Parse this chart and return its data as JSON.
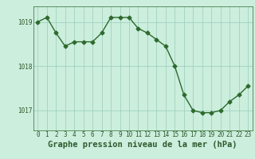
{
  "x": [
    0,
    1,
    2,
    3,
    4,
    5,
    6,
    7,
    8,
    9,
    10,
    11,
    12,
    13,
    14,
    15,
    16,
    17,
    18,
    19,
    20,
    21,
    22,
    23
  ],
  "y": [
    1019.0,
    1019.1,
    1018.75,
    1018.45,
    1018.55,
    1018.55,
    1018.55,
    1018.75,
    1019.1,
    1019.1,
    1019.1,
    1018.85,
    1018.75,
    1018.6,
    1018.45,
    1018.0,
    1017.35,
    1017.0,
    1016.95,
    1016.95,
    1017.0,
    1017.2,
    1017.35,
    1017.55
  ],
  "line_color": "#2d6a2d",
  "marker": "D",
  "markersize": 2.5,
  "linewidth": 1.0,
  "bg_color": "#cceedd",
  "grid_color": "#99ccbb",
  "xlabel": "Graphe pression niveau de la mer (hPa)",
  "xlabel_fontsize": 7.5,
  "xlabel_color": "#2d5a2d",
  "yticks": [
    1017,
    1018,
    1019
  ],
  "ylim": [
    1016.55,
    1019.35
  ],
  "xlim": [
    -0.5,
    23.5
  ],
  "xticks": [
    0,
    1,
    2,
    3,
    4,
    5,
    6,
    7,
    8,
    9,
    10,
    11,
    12,
    13,
    14,
    15,
    16,
    17,
    18,
    19,
    20,
    21,
    22,
    23
  ],
  "tick_fontsize": 5.5,
  "tick_color": "#2d5a2d",
  "spine_color": "#2d6a2d"
}
